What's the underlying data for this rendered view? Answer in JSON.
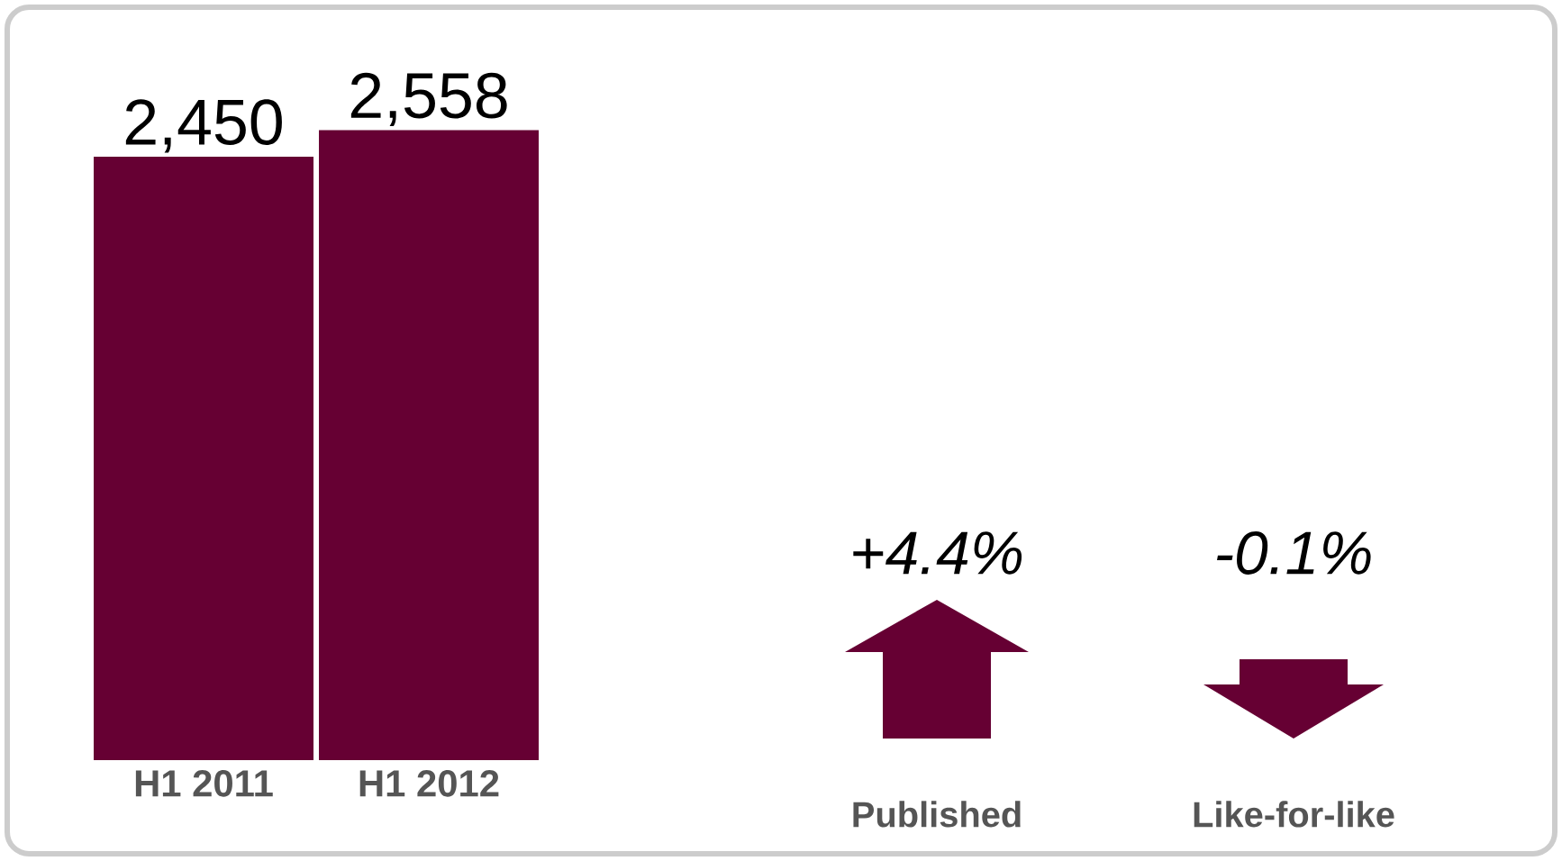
{
  "chart_data": {
    "type": "bar",
    "categories": [
      "H1 2011",
      "H1 2012"
    ],
    "values": [
      2450,
      2558
    ],
    "value_labels": [
      "2,450",
      "2,558"
    ],
    "color": "#660033",
    "tick_labels": "x",
    "annotations": [
      "+4.4%",
      "Published",
      "-0.1%",
      "Like-for-like"
    ]
  }
}
